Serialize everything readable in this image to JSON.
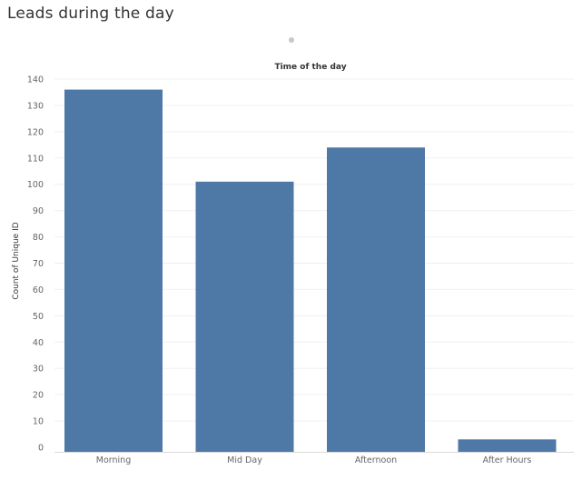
{
  "page": {
    "title": "Leads during the day"
  },
  "colors": {
    "bar": "#4e79a7",
    "gridline": "#f0f0f0",
    "axis": "#d9d9d9",
    "tick_text": "#666666",
    "label_text": "#333333"
  },
  "chart_data": {
    "type": "bar",
    "title": "Time of the day",
    "xlabel": "",
    "ylabel": "Count of Unique ID",
    "categories": [
      "Morning",
      "Mid Day",
      "Afternoon",
      "After Hours"
    ],
    "values": [
      136,
      101,
      114,
      3
    ],
    "ylim": [
      0,
      140
    ],
    "yticks": [
      0,
      10,
      20,
      30,
      40,
      50,
      60,
      70,
      80,
      90,
      100,
      110,
      120,
      130,
      140
    ],
    "grid": true,
    "legend": "none"
  }
}
